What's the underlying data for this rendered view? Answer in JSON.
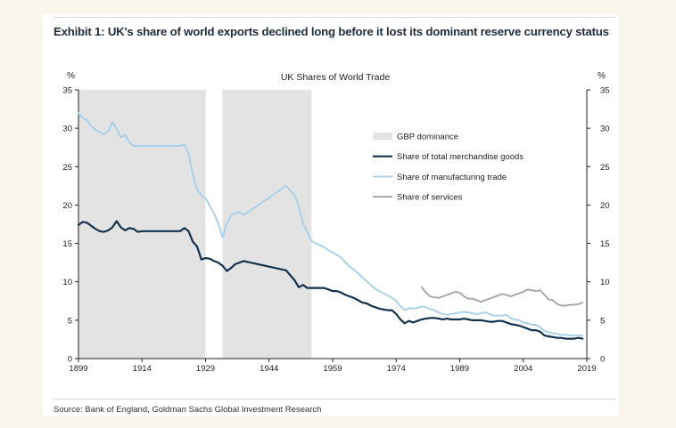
{
  "exhibit_title": "Exhibit 1: UK's share of world exports declined long before it lost its dominant reserve currency status",
  "source": "Source: Bank of England, Goldman Sachs Global Investment Research",
  "colors": {
    "gbp_band": "#e3e3e3",
    "merchandise": "#12324f",
    "manufacturing": "#a7d0ea",
    "services": "#a6a6a6"
  },
  "chart_data": {
    "type": "line",
    "title": "UK Shares of World Trade",
    "ylabel_left": "%",
    "ylabel_right": "%",
    "xlim": [
      1899,
      2019
    ],
    "ylim": [
      0,
      35
    ],
    "x_ticks": [
      1899,
      1914,
      1929,
      1944,
      1959,
      1974,
      1989,
      2004,
      2019
    ],
    "y_ticks": [
      0,
      5,
      10,
      15,
      20,
      25,
      30,
      35
    ],
    "shaded_regions": [
      {
        "start": 1899,
        "end": 1929
      },
      {
        "start": 1933,
        "end": 1954
      }
    ],
    "legend": [
      {
        "key": "gbp",
        "label": "GBP dominance"
      },
      {
        "key": "merchandise",
        "label": "Share of total merchandise goods"
      },
      {
        "key": "manufacturing",
        "label": "Share of manufacturing trade"
      },
      {
        "key": "services",
        "label": "Share of services"
      }
    ],
    "series": [
      {
        "name": "Share of total merchandise goods",
        "key": "merchandise",
        "x": [
          1899,
          1900,
          1901,
          1902,
          1903,
          1904,
          1905,
          1906,
          1907,
          1908,
          1909,
          1910,
          1911,
          1912,
          1913,
          1914,
          1915,
          1916,
          1917,
          1918,
          1919,
          1920,
          1921,
          1922,
          1923,
          1924,
          1925,
          1926,
          1927,
          1928,
          1929,
          1930,
          1931,
          1932,
          1933,
          1934,
          1935,
          1936,
          1937,
          1938,
          1948,
          1950,
          1951,
          1952,
          1953,
          1954,
          1955,
          1956,
          1957,
          1958,
          1959,
          1960,
          1961,
          1962,
          1963,
          1964,
          1965,
          1966,
          1967,
          1968,
          1969,
          1970,
          1971,
          1972,
          1973,
          1974,
          1975,
          1976,
          1977,
          1978,
          1979,
          1980,
          1981,
          1982,
          1983,
          1984,
          1985,
          1986,
          1987,
          1988,
          1989,
          1990,
          1991,
          1992,
          1993,
          1994,
          1995,
          1996,
          1997,
          1998,
          1999,
          2000,
          2001,
          2002,
          2003,
          2004,
          2005,
          2006,
          2007,
          2008,
          2009,
          2010,
          2011,
          2012,
          2013,
          2014,
          2015,
          2016,
          2017,
          2018
        ],
        "values": [
          17.4,
          17.8,
          17.7,
          17.3,
          16.9,
          16.6,
          16.5,
          16.7,
          17.1,
          17.9,
          17.1,
          16.7,
          17.0,
          16.9,
          16.5,
          16.6,
          16.6,
          16.6,
          16.6,
          16.6,
          16.6,
          16.6,
          16.6,
          16.6,
          16.6,
          17.0,
          16.6,
          15.2,
          14.6,
          12.9,
          13.1,
          13.0,
          12.7,
          12.5,
          12.1,
          11.4,
          11.8,
          12.3,
          12.5,
          12.7,
          11.5,
          10.2,
          9.3,
          9.6,
          9.2,
          9.2,
          9.2,
          9.2,
          9.2,
          9.0,
          8.8,
          8.8,
          8.6,
          8.3,
          8.1,
          7.9,
          7.6,
          7.3,
          7.2,
          6.9,
          6.7,
          6.5,
          6.4,
          6.3,
          6.3,
          5.8,
          5.1,
          4.6,
          4.9,
          4.7,
          4.9,
          5.1,
          5.2,
          5.3,
          5.3,
          5.2,
          5.1,
          5.2,
          5.1,
          5.1,
          5.1,
          5.2,
          5.1,
          5.0,
          5.0,
          5.0,
          4.9,
          4.8,
          4.8,
          4.9,
          4.9,
          4.7,
          4.5,
          4.4,
          4.3,
          4.1,
          3.9,
          3.7,
          3.7,
          3.5,
          3.0,
          2.9,
          2.8,
          2.7,
          2.7,
          2.6,
          2.6,
          2.6,
          2.7,
          2.6
        ]
      },
      {
        "name": "Share of manufacturing trade",
        "key": "manufacturing",
        "x": [
          1899,
          1900,
          1901,
          1902,
          1903,
          1904,
          1905,
          1906,
          1907,
          1908,
          1909,
          1910,
          1911,
          1912,
          1913,
          1914,
          1915,
          1916,
          1917,
          1918,
          1919,
          1920,
          1921,
          1922,
          1923,
          1924,
          1925,
          1926,
          1927,
          1928,
          1929,
          1930,
          1931,
          1932,
          1933,
          1934,
          1935,
          1936,
          1937,
          1938,
          1948,
          1950,
          1951,
          1952,
          1953,
          1954,
          1955,
          1956,
          1957,
          1958,
          1959,
          1960,
          1961,
          1962,
          1963,
          1964,
          1965,
          1966,
          1967,
          1968,
          1969,
          1970,
          1971,
          1972,
          1973,
          1974,
          1975,
          1976,
          1977,
          1978,
          1979,
          1980,
          1981,
          1982,
          1983,
          1984,
          1985,
          1986,
          1987,
          1988,
          1989,
          1990,
          1991,
          1992,
          1993,
          1994,
          1995,
          1996,
          1997,
          1998,
          1999,
          2000,
          2001,
          2002,
          2003,
          2004,
          2005,
          2006,
          2007,
          2008,
          2009,
          2010,
          2011,
          2012,
          2013,
          2014,
          2015,
          2016,
          2017,
          2018
        ],
        "values": [
          32.0,
          31.3,
          31.1,
          30.3,
          29.8,
          29.5,
          29.2,
          29.6,
          30.8,
          29.9,
          28.8,
          29.1,
          28.2,
          27.7,
          27.7,
          27.7,
          27.7,
          27.7,
          27.7,
          27.7,
          27.7,
          27.7,
          27.7,
          27.7,
          27.7,
          27.9,
          26.7,
          24.0,
          22.0,
          21.3,
          20.9,
          19.9,
          18.9,
          17.6,
          15.8,
          17.6,
          18.6,
          19.0,
          19.1,
          18.7,
          22.5,
          21.3,
          19.9,
          17.6,
          16.5,
          15.3,
          15.0,
          14.8,
          14.5,
          14.1,
          13.8,
          13.5,
          13.2,
          12.5,
          12.0,
          11.6,
          11.1,
          10.6,
          10.1,
          9.6,
          9.1,
          8.8,
          8.5,
          8.2,
          7.9,
          7.5,
          6.8,
          6.3,
          6.6,
          6.5,
          6.6,
          6.8,
          6.7,
          6.4,
          6.3,
          6.0,
          5.8,
          5.7,
          5.8,
          5.9,
          6.0,
          6.1,
          6.0,
          5.9,
          5.8,
          5.9,
          6.0,
          5.8,
          5.6,
          5.6,
          5.6,
          5.7,
          5.3,
          5.1,
          5.0,
          4.7,
          4.6,
          4.4,
          4.4,
          4.1,
          3.6,
          3.4,
          3.3,
          3.2,
          3.1,
          3.1,
          3.0,
          3.0,
          3.0,
          3.0
        ]
      },
      {
        "name": "Share of services",
        "key": "services",
        "x": [
          1980,
          1981,
          1982,
          1983,
          1984,
          1985,
          1986,
          1987,
          1988,
          1989,
          1990,
          1991,
          1992,
          1993,
          1994,
          1995,
          1996,
          1997,
          1998,
          1999,
          2000,
          2001,
          2002,
          2003,
          2004,
          2005,
          2006,
          2007,
          2008,
          2009,
          2010,
          2011,
          2012,
          2013,
          2014,
          2015,
          2016,
          2017,
          2018
        ],
        "values": [
          9.3,
          8.6,
          8.1,
          8.0,
          7.9,
          8.1,
          8.3,
          8.5,
          8.7,
          8.6,
          8.1,
          7.8,
          7.8,
          7.6,
          7.4,
          7.6,
          7.8,
          8.0,
          8.2,
          8.4,
          8.3,
          8.1,
          8.3,
          8.5,
          8.7,
          9.0,
          8.9,
          8.8,
          8.9,
          8.3,
          7.7,
          7.6,
          7.1,
          6.9,
          6.9,
          7.0,
          7.0,
          7.1,
          7.3
        ]
      }
    ]
  }
}
